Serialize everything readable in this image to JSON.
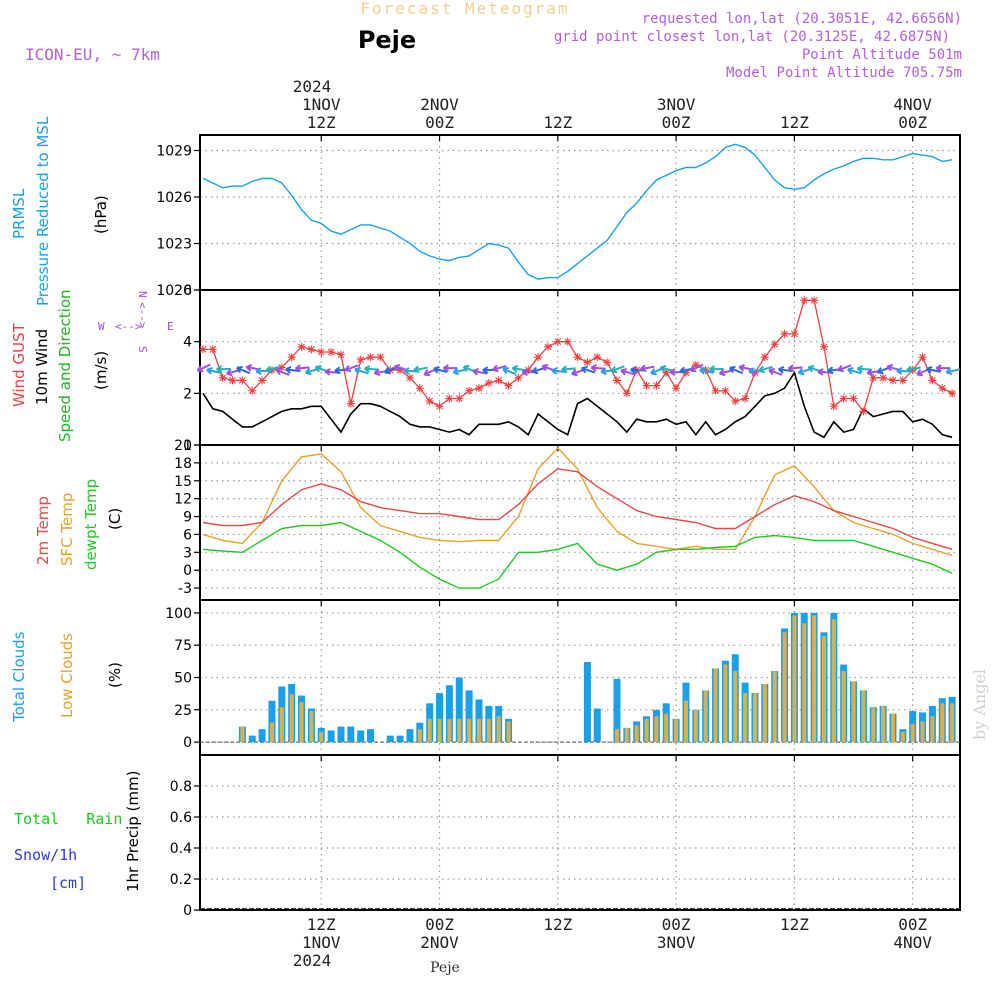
{
  "header": {
    "top_title": "Forecast Meteogram",
    "location": "Peje",
    "model": "ICON-EU, ~ 7km",
    "requested": "requested lon,lat (20.3051E, 42.6656N)",
    "grid_point": "grid point closest lon,lat (20.3125E, 42.6875N)",
    "point_altitude": "Point Altitude 501m",
    "model_altitude": "Model Point Altitude 705.75m",
    "footer_location": "Peje",
    "watermark": "by Angel"
  },
  "colors": {
    "pressure": "#1aa0e6",
    "gust": "#f04040",
    "wind10m": "#000000",
    "wind_label": "#22b422",
    "wind_dir": "#a050e0",
    "temp2m": "#e84848",
    "sfc_temp": "#e8a030",
    "dewpoint": "#22c822",
    "total_clouds": "#1aa0e6",
    "low_clouds": "#d8b050",
    "precip_rain": "#22c822",
    "precip_snow": "#2a3ae0",
    "header_title": "#f0d090",
    "header_info": "#b060e0"
  },
  "time_axis": {
    "top_year": "2024",
    "bottom_year": "2024",
    "labels": [
      {
        "t": 12,
        "top": [
          "1NOV",
          "12Z"
        ],
        "bottom": [
          "12Z",
          "1NOV"
        ]
      },
      {
        "t": 24,
        "top": [
          "2NOV",
          "00Z"
        ],
        "bottom": [
          "00Z",
          "2NOV"
        ]
      },
      {
        "t": 36,
        "top": [
          "",
          "12Z"
        ],
        "bottom": [
          "12Z",
          ""
        ]
      },
      {
        "t": 48,
        "top": [
          "3NOV",
          "00Z"
        ],
        "bottom": [
          "00Z",
          "3NOV"
        ]
      },
      {
        "t": 60,
        "top": [
          "",
          "12Z"
        ],
        "bottom": [
          "12Z",
          ""
        ]
      },
      {
        "t": 72,
        "top": [
          "4NOV",
          "00Z"
        ],
        "bottom": [
          "00Z",
          "4NOV"
        ]
      }
    ]
  },
  "labels": {
    "pressure": [
      "PRMSL",
      "Pressure Reduced to MSL",
      "(hPa)"
    ],
    "wind": [
      "Wind GUST",
      "10m Wind",
      "Speed and Direction",
      "(m/s)"
    ],
    "compass": {
      "n": "N",
      "s": "S",
      "w": "W",
      "e": "E",
      "ns": "<-->",
      "we": "<-->"
    },
    "temp": [
      "2m Temp",
      "SFC Temp",
      "dewpt Temp",
      "(C)"
    ],
    "clouds": [
      "Total Clouds",
      "Low Clouds",
      "(%)"
    ],
    "precip": [
      "Total   Rain",
      "Snow/1h",
      "[cm]",
      "1hr Precip (mm)"
    ]
  },
  "chart_data": [
    {
      "type": "line",
      "name": "pressure",
      "title": "PRMSL Pressure Reduced to MSL",
      "ylabel": "hPa",
      "ylim": [
        1020,
        1030
      ],
      "yticks": [
        1020,
        1023,
        1026,
        1029
      ],
      "x": [
        0,
        2,
        3,
        4,
        5,
        6,
        7,
        8,
        9,
        10,
        11,
        12,
        13,
        14,
        15,
        16,
        17,
        18,
        19,
        20,
        21,
        22,
        23,
        24,
        25,
        26,
        27,
        28,
        29,
        30,
        31,
        32,
        33,
        34,
        35,
        36,
        37,
        38,
        39,
        40,
        41,
        42,
        43,
        44,
        45,
        46,
        47,
        48,
        49,
        50,
        51,
        52,
        53,
        54,
        55,
        56,
        57,
        58,
        59,
        60,
        61,
        62,
        63,
        64,
        65,
        66,
        67,
        68,
        69,
        70,
        71,
        72,
        73,
        74,
        75,
        76
      ],
      "series": [
        {
          "name": "PRMSL",
          "values": [
            1027.2,
            1026.6,
            1026.7,
            1026.7,
            1027.0,
            1027.2,
            1027.2,
            1026.9,
            1026.1,
            1025.2,
            1024.5,
            1024.3,
            1023.8,
            1023.6,
            1023.9,
            1024.2,
            1024.2,
            1024.0,
            1023.8,
            1023.4,
            1023.0,
            1022.5,
            1022.2,
            1022.0,
            1021.9,
            1022.1,
            1022.2,
            1022.6,
            1023.0,
            1022.9,
            1022.7,
            1021.8,
            1021.0,
            1020.7,
            1020.8,
            1020.8,
            1021.2,
            1021.7,
            1022.2,
            1022.7,
            1023.2,
            1024.1,
            1025.0,
            1025.6,
            1026.4,
            1027.1,
            1027.4,
            1027.7,
            1027.9,
            1027.9,
            1028.2,
            1028.6,
            1029.2,
            1029.4,
            1029.2,
            1028.7,
            1027.9,
            1027.1,
            1026.6,
            1026.5,
            1026.6,
            1027.1,
            1027.5,
            1027.8,
            1028.0,
            1028.3,
            1028.5,
            1028.5,
            1028.4,
            1028.4,
            1028.6,
            1028.8,
            1028.7,
            1028.6,
            1028.3,
            1028.4
          ]
        }
      ]
    },
    {
      "type": "line",
      "name": "wind",
      "title": "Wind GUST / 10m Wind Speed and Direction",
      "ylabel": "m/s",
      "ylim": [
        0,
        6
      ],
      "yticks": [
        0,
        2,
        4,
        6
      ],
      "x": [
        0,
        1,
        2,
        3,
        4,
        5,
        6,
        7,
        8,
        9,
        10,
        11,
        12,
        13,
        14,
        15,
        16,
        17,
        18,
        19,
        20,
        21,
        22,
        23,
        24,
        25,
        26,
        27,
        28,
        29,
        30,
        31,
        32,
        33,
        34,
        35,
        36,
        37,
        38,
        39,
        40,
        41,
        42,
        43,
        44,
        45,
        46,
        47,
        48,
        49,
        50,
        51,
        52,
        53,
        54,
        55,
        56,
        57,
        58,
        59,
        60,
        61,
        62,
        63,
        64,
        65,
        66,
        67,
        68,
        69,
        70,
        71,
        72,
        73,
        74,
        75,
        76
      ],
      "series": [
        {
          "name": "Wind GUST",
          "values": [
            3.7,
            3.7,
            2.6,
            2.5,
            2.5,
            2.1,
            2.5,
            2.9,
            3.0,
            3.4,
            3.8,
            3.7,
            3.6,
            3.6,
            3.5,
            1.6,
            3.3,
            3.4,
            3.4,
            2.9,
            2.9,
            2.6,
            2.2,
            1.7,
            1.5,
            1.8,
            1.8,
            2.1,
            2.2,
            2.4,
            2.5,
            2.3,
            2.6,
            2.9,
            3.4,
            3.8,
            4.0,
            4.0,
            3.4,
            3.2,
            3.4,
            3.2,
            2.5,
            2.0,
            2.9,
            2.3,
            2.3,
            2.8,
            2.2,
            2.8,
            3.1,
            2.9,
            2.1,
            2.1,
            1.7,
            1.8,
            2.8,
            3.4,
            3.9,
            4.3,
            4.3,
            5.6,
            5.6,
            3.8,
            1.5,
            1.8,
            1.8,
            1.3,
            2.6,
            2.6,
            2.5,
            2.5,
            2.9,
            3.4,
            2.5,
            2.2,
            2.0
          ]
        },
        {
          "name": "10m Wind",
          "values": [
            2.0,
            1.4,
            1.3,
            1.0,
            0.7,
            0.7,
            0.9,
            1.1,
            1.3,
            1.4,
            1.4,
            1.5,
            1.5,
            1.0,
            0.5,
            1.2,
            1.6,
            1.6,
            1.5,
            1.3,
            1.1,
            0.8,
            0.7,
            0.7,
            0.6,
            0.5,
            0.6,
            0.4,
            0.8,
            0.8,
            0.8,
            0.9,
            0.7,
            0.4,
            1.2,
            0.9,
            0.6,
            0.4,
            1.6,
            1.8,
            1.5,
            1.2,
            0.9,
            0.5,
            1.0,
            0.9,
            0.9,
            1.0,
            0.8,
            0.9,
            0.4,
            0.9,
            0.4,
            0.6,
            0.9,
            1.1,
            1.5,
            1.9,
            2.0,
            2.2,
            2.8,
            1.5,
            0.5,
            0.3,
            0.9,
            0.5,
            0.6,
            1.4,
            1.1,
            1.2,
            1.3,
            1.3,
            0.9,
            1.0,
            0.8,
            0.4,
            0.3
          ]
        }
      ]
    },
    {
      "type": "line",
      "name": "temperature",
      "title": "2m Temp / SFC Temp / dewpt Temp",
      "ylabel": "C",
      "ylim": [
        -5,
        21
      ],
      "yticks": [
        -3,
        0,
        3,
        6,
        9,
        12,
        15,
        18,
        21
      ],
      "x": [
        0,
        2,
        4,
        6,
        8,
        10,
        12,
        14,
        16,
        18,
        20,
        22,
        24,
        26,
        28,
        30,
        32,
        34,
        36,
        38,
        40,
        42,
        44,
        46,
        48,
        50,
        52,
        54,
        56,
        58,
        60,
        62,
        64,
        66,
        68,
        70,
        72,
        74,
        76
      ],
      "series": [
        {
          "name": "2m Temp",
          "values": [
            8.0,
            7.5,
            7.5,
            8.0,
            11.0,
            13.5,
            14.5,
            13.5,
            11.5,
            10.5,
            10.0,
            9.5,
            9.5,
            9.0,
            8.5,
            8.5,
            11.0,
            14.5,
            17.0,
            16.5,
            14.0,
            12.0,
            10.0,
            9.0,
            8.5,
            8.0,
            7.0,
            7.0,
            9.0,
            11.0,
            12.5,
            11.5,
            10.0,
            9.0,
            8.0,
            7.0,
            5.5,
            4.5,
            3.5
          ]
        },
        {
          "name": "SFC Temp",
          "values": [
            6.0,
            5.0,
            4.5,
            8.0,
            15.0,
            19.0,
            19.5,
            16.5,
            10.5,
            7.5,
            6.5,
            5.5,
            5.0,
            4.8,
            5.0,
            5.0,
            9.0,
            17.0,
            20.5,
            17.0,
            10.5,
            6.5,
            4.5,
            4.0,
            3.5,
            4.0,
            3.5,
            3.5,
            9.0,
            16.0,
            17.5,
            14.0,
            10.0,
            8.0,
            7.0,
            6.0,
            4.5,
            3.5,
            2.5
          ]
        },
        {
          "name": "dewpt Temp",
          "values": [
            3.5,
            3.2,
            3.0,
            5.0,
            7.0,
            7.5,
            7.5,
            8.0,
            6.5,
            5.0,
            3.0,
            0.5,
            -1.5,
            -3.0,
            -3.0,
            -1.5,
            3.0,
            3.0,
            3.5,
            4.5,
            1.0,
            0.0,
            1.0,
            3.0,
            3.5,
            3.5,
            3.8,
            4.0,
            5.5,
            5.8,
            5.5,
            5.0,
            5.0,
            5.0,
            4.0,
            3.0,
            2.0,
            1.0,
            -0.5
          ]
        }
      ]
    },
    {
      "type": "bar",
      "name": "clouds",
      "title": "Total Clouds / Low Clouds",
      "ylabel": "%",
      "ylim": [
        -10,
        110
      ],
      "yticks": [
        0,
        25,
        50,
        75,
        100
      ],
      "x": [
        0,
        1,
        2,
        3,
        4,
        5,
        6,
        7,
        8,
        9,
        10,
        11,
        12,
        13,
        14,
        15,
        16,
        17,
        18,
        19,
        20,
        21,
        22,
        23,
        24,
        25,
        26,
        27,
        28,
        29,
        30,
        31,
        32,
        33,
        34,
        35,
        36,
        37,
        38,
        39,
        40,
        41,
        42,
        43,
        44,
        45,
        46,
        47,
        48,
        49,
        50,
        51,
        52,
        53,
        54,
        55,
        56,
        57,
        58,
        59,
        60,
        61,
        62,
        63,
        64,
        65,
        66,
        67,
        68,
        69,
        70,
        71,
        72,
        73,
        74,
        75,
        76
      ],
      "series": [
        {
          "name": "Total Clouds",
          "values": [
            0,
            0,
            0,
            0,
            12,
            5,
            10,
            32,
            43,
            45,
            36,
            26,
            11,
            9,
            12,
            12,
            9,
            10,
            0,
            5,
            5,
            10,
            15,
            30,
            38,
            44,
            50,
            40,
            33,
            28,
            28,
            18,
            0,
            0,
            0,
            0,
            0,
            0,
            0,
            62,
            26,
            0,
            49,
            11,
            16,
            20,
            25,
            30,
            18,
            46,
            25,
            40,
            57,
            63,
            68,
            46,
            38,
            45,
            55,
            88,
            100,
            100,
            100,
            85,
            100,
            60,
            47,
            40,
            27,
            28,
            22,
            10,
            24,
            23,
            28,
            34,
            35
          ]
        },
        {
          "name": "Low Clouds",
          "values": [
            0,
            0,
            0,
            0,
            12,
            0,
            0,
            15,
            27,
            37,
            31,
            24,
            8,
            0,
            0,
            0,
            0,
            0,
            0,
            0,
            0,
            0,
            10,
            18,
            18,
            18,
            18,
            18,
            18,
            18,
            20,
            16,
            0,
            0,
            0,
            0,
            0,
            0,
            0,
            0,
            0,
            0,
            10,
            11,
            13,
            18,
            20,
            22,
            18,
            32,
            25,
            40,
            57,
            60,
            55,
            38,
            38,
            45,
            55,
            85,
            98,
            92,
            98,
            82,
            95,
            55,
            47,
            40,
            27,
            28,
            22,
            8,
            14,
            16,
            20,
            30,
            30
          ]
        }
      ]
    },
    {
      "type": "bar",
      "name": "precip",
      "title": "Total Rain / Snow 1h",
      "ylabel": "1hr Precip (mm)",
      "ylim": [
        0,
        1
      ],
      "yticks": [
        0,
        0.2,
        0.4,
        0.6,
        0.8
      ],
      "ytick_labels": [
        "0",
        "0.2",
        "0.4",
        "0.6",
        "0.8"
      ],
      "x": [],
      "series": [
        {
          "name": "Total Rain",
          "values": []
        },
        {
          "name": "Snow/1h",
          "values": []
        }
      ]
    }
  ]
}
